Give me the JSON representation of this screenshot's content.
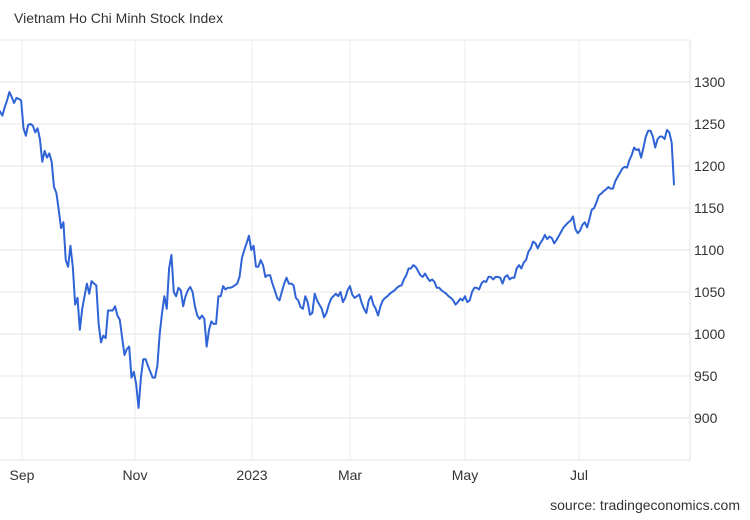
{
  "chart_data": {
    "type": "line",
    "title": "Vietnam Ho Chi Minh Stock Index",
    "source": "source: tradingeconomics.com",
    "xlabel": "",
    "ylabel": "",
    "x_tick_labels": [
      "Sep",
      "Nov",
      "2023",
      "Mar",
      "May",
      "Jul"
    ],
    "y_tick_labels": [
      "1300",
      "1250",
      "1200",
      "1150",
      "1100",
      "1050",
      "1000",
      "950",
      "900"
    ],
    "ylim": [
      850,
      1350
    ],
    "grid": true,
    "line_color": "#2f63d6",
    "series": [
      {
        "values": [
          1265,
          1260,
          1270,
          1278,
          1288,
          1282,
          1275,
          1281,
          1280,
          1278,
          1245,
          1236,
          1249,
          1250,
          1248,
          1240,
          1245,
          1232,
          1205,
          1218,
          1210,
          1215,
          1205,
          1175,
          1168,
          1148,
          1126,
          1133,
          1088,
          1080,
          1105,
          1080,
          1035,
          1043,
          1005,
          1030,
          1045,
          1060,
          1048,
          1063,
          1060,
          1058,
          1012,
          990,
          998,
          995,
          1028,
          1028,
          1028,
          1033,
          1022,
          1017,
          996,
          975,
          982,
          985,
          948,
          955,
          940,
          912,
          948,
          970,
          970,
          962,
          955,
          948,
          948,
          962,
          1000,
          1025,
          1045,
          1030,
          1078,
          1094,
          1050,
          1045,
          1055,
          1052,
          1033,
          1045,
          1052,
          1056,
          1050,
          1033,
          1022,
          1018,
          1022,
          1018,
          985,
          1005,
          1015,
          1012,
          1012,
          1045,
          1045,
          1057,
          1053,
          1055,
          1055,
          1056,
          1058,
          1060,
          1068,
          1090,
          1100,
          1108,
          1117,
          1100,
          1105,
          1080,
          1080,
          1088,
          1082,
          1068,
          1070,
          1070,
          1060,
          1052,
          1043,
          1040,
          1050,
          1060,
          1067,
          1060,
          1060,
          1058,
          1043,
          1040,
          1032,
          1030,
          1045,
          1038,
          1023,
          1025,
          1048,
          1040,
          1035,
          1030,
          1020,
          1025,
          1035,
          1042,
          1045,
          1048,
          1045,
          1050,
          1038,
          1043,
          1052,
          1057,
          1047,
          1043,
          1045,
          1047,
          1037,
          1030,
          1025,
          1040,
          1045,
          1035,
          1030,
          1022,
          1033,
          1040,
          1043,
          1045,
          1048,
          1050,
          1052,
          1055,
          1057,
          1058,
          1065,
          1070,
          1078,
          1078,
          1082,
          1080,
          1075,
          1070,
          1068,
          1072,
          1067,
          1063,
          1065,
          1062,
          1055,
          1055,
          1052,
          1050,
          1048,
          1045,
          1043,
          1040,
          1035,
          1038,
          1042,
          1040,
          1045,
          1038,
          1040,
          1050,
          1055,
          1055,
          1053,
          1060,
          1063,
          1062,
          1068,
          1068,
          1065,
          1068,
          1068,
          1067,
          1060,
          1068,
          1070,
          1065,
          1067,
          1067,
          1078,
          1082,
          1078,
          1085,
          1088,
          1098,
          1102,
          1110,
          1108,
          1102,
          1108,
          1112,
          1118,
          1113,
          1116,
          1114,
          1108,
          1112,
          1117,
          1122,
          1127,
          1130,
          1133,
          1135,
          1140,
          1125,
          1120,
          1123,
          1130,
          1133,
          1127,
          1137,
          1148,
          1150,
          1157,
          1165,
          1167,
          1170,
          1172,
          1175,
          1173,
          1173,
          1182,
          1187,
          1192,
          1197,
          1199,
          1198,
          1207,
          1213,
          1222,
          1219,
          1220,
          1210,
          1222,
          1235,
          1242,
          1242,
          1235,
          1222,
          1232,
          1235,
          1235,
          1232,
          1243,
          1240,
          1228,
          1178
        ]
      }
    ]
  }
}
